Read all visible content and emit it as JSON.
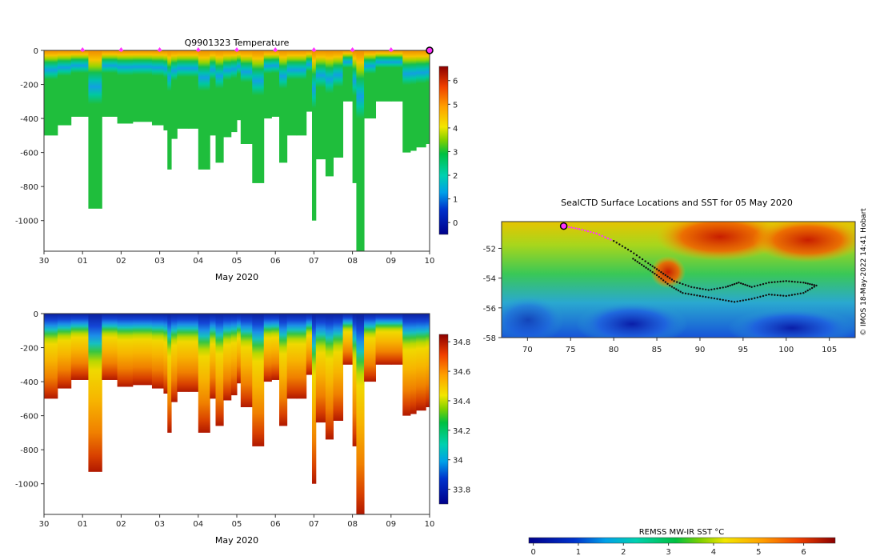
{
  "chart_data": [
    {
      "id": "temperature",
      "type": "heatmap",
      "title": "Q9901323  Temperature",
      "xlabel": "May 2020",
      "ylabel": "",
      "xlim": [
        30,
        40
      ],
      "ylim": [
        -1180,
        0
      ],
      "x_ticks": [
        30,
        31,
        32,
        33,
        34,
        35,
        36,
        37,
        38,
        39,
        40
      ],
      "x_tick_labels": [
        "30",
        "01",
        "02",
        "03",
        "04",
        "05",
        "06",
        "07",
        "08",
        "09",
        "10"
      ],
      "y_ticks": [
        0,
        -200,
        -400,
        -600,
        -800,
        -1000
      ],
      "y_tick_labels": [
        "0",
        "-200",
        "-400",
        "-600",
        "-800",
        "-1000"
      ],
      "colorbar": {
        "min": -0.5,
        "max": 6.6,
        "ticks": [
          0,
          1,
          2,
          3,
          4,
          5,
          6
        ],
        "tick_labels": [
          "0",
          "1",
          "2",
          "3",
          "4",
          "5",
          "6"
        ]
      },
      "surface_markers_x": [
        31,
        32,
        33,
        34,
        35,
        36,
        37,
        38,
        39
      ],
      "last_profile_marker_x": 40,
      "profiles_depth": [
        [
          30.0,
          500
        ],
        [
          30.35,
          440
        ],
        [
          30.7,
          390
        ],
        [
          31.15,
          930
        ],
        [
          31.5,
          390
        ],
        [
          31.9,
          430
        ],
        [
          32.3,
          420
        ],
        [
          32.8,
          440
        ],
        [
          33.1,
          470
        ],
        [
          33.2,
          700
        ],
        [
          33.3,
          520
        ],
        [
          33.45,
          460
        ],
        [
          33.75,
          460
        ],
        [
          34.0,
          700
        ],
        [
          34.3,
          500
        ],
        [
          34.45,
          660
        ],
        [
          34.65,
          510
        ],
        [
          34.85,
          480
        ],
        [
          35.0,
          410
        ],
        [
          35.1,
          550
        ],
        [
          35.4,
          780
        ],
        [
          35.7,
          400
        ],
        [
          35.9,
          390
        ],
        [
          36.1,
          660
        ],
        [
          36.3,
          500
        ],
        [
          36.55,
          500
        ],
        [
          36.8,
          360
        ],
        [
          36.95,
          1000
        ],
        [
          37.05,
          640
        ],
        [
          37.3,
          740
        ],
        [
          37.5,
          630
        ],
        [
          37.75,
          300
        ],
        [
          38.0,
          780
        ],
        [
          38.1,
          1180
        ],
        [
          38.3,
          400
        ],
        [
          38.6,
          300
        ],
        [
          39.0,
          300
        ],
        [
          39.3,
          600
        ],
        [
          39.5,
          590
        ],
        [
          39.65,
          570
        ],
        [
          39.9,
          550
        ],
        [
          40.0,
          520
        ]
      ]
    },
    {
      "id": "salinity",
      "type": "heatmap",
      "title": "",
      "xlabel": "May 2020",
      "ylabel": "",
      "xlim": [
        30,
        40
      ],
      "ylim": [
        -1180,
        0
      ],
      "x_ticks": [
        30,
        31,
        32,
        33,
        34,
        35,
        36,
        37,
        38,
        39,
        40
      ],
      "x_tick_labels": [
        "30",
        "01",
        "02",
        "03",
        "04",
        "05",
        "06",
        "07",
        "08",
        "09",
        "10"
      ],
      "y_ticks": [
        0,
        -200,
        -400,
        -600,
        -800,
        -1000
      ],
      "y_tick_labels": [
        "0",
        "-200",
        "-400",
        "-600",
        "-800",
        "-1000"
      ],
      "colorbar": {
        "min": 33.7,
        "max": 34.85,
        "ticks": [
          33.8,
          34,
          34.2,
          34.4,
          34.6,
          34.8
        ],
        "tick_labels": [
          "33.8",
          "34",
          "34.2",
          "34.4",
          "34.6",
          "34.8"
        ]
      }
    },
    {
      "id": "sst_map",
      "type": "heatmap",
      "title": "SealCTD Surface Locations and SST for 05 May 2020",
      "xlim": [
        67,
        108
      ],
      "ylim": [
        -58,
        -50.2
      ],
      "x_ticks": [
        70,
        75,
        80,
        85,
        90,
        95,
        100,
        105
      ],
      "x_tick_labels": [
        "70",
        "75",
        "80",
        "85",
        "90",
        "95",
        "100",
        "105"
      ],
      "y_ticks": [
        -52,
        -54,
        -56,
        -58
      ],
      "y_tick_labels": [
        "-52",
        "-54",
        "-56",
        "-58"
      ],
      "current_location": [
        74.2,
        -50.5
      ],
      "track_lon_lat": [
        [
          74.2,
          -50.5
        ],
        [
          76,
          -50.7
        ],
        [
          78,
          -51
        ],
        [
          80,
          -51.5
        ],
        [
          82,
          -52.2
        ],
        [
          84,
          -53
        ],
        [
          85.5,
          -53.6
        ],
        [
          87,
          -54.2
        ],
        [
          89,
          -54.6
        ],
        [
          91,
          -54.8
        ],
        [
          93,
          -54.6
        ],
        [
          94.5,
          -54.3
        ],
        [
          96,
          -54.6
        ],
        [
          98,
          -54.3
        ],
        [
          100,
          -54.2
        ],
        [
          102,
          -54.3
        ],
        [
          103.5,
          -54.5
        ],
        [
          102,
          -55
        ],
        [
          100,
          -55.2
        ],
        [
          98,
          -55.1
        ],
        [
          96,
          -55.4
        ],
        [
          94,
          -55.6
        ],
        [
          92,
          -55.4
        ],
        [
          90,
          -55.2
        ],
        [
          88,
          -55
        ],
        [
          86.5,
          -54.5
        ],
        [
          85,
          -53.8
        ],
        [
          83.5,
          -53.2
        ],
        [
          82,
          -52.6
        ]
      ],
      "colorbar_label": "REMSS MW-IR SST °C",
      "colorbar": {
        "min": -0.1,
        "max": 6.7,
        "ticks": [
          0,
          1,
          2,
          3,
          4,
          5,
          6
        ],
        "tick_labels": [
          "0",
          "1",
          "2",
          "3",
          "4",
          "5",
          "6"
        ]
      },
      "credit": "© IMOS 18-May-2022 14:41 Hobart"
    }
  ],
  "colors": {
    "surface_marker": "#ff33ff",
    "track": "#111111",
    "axis": "#333333"
  }
}
